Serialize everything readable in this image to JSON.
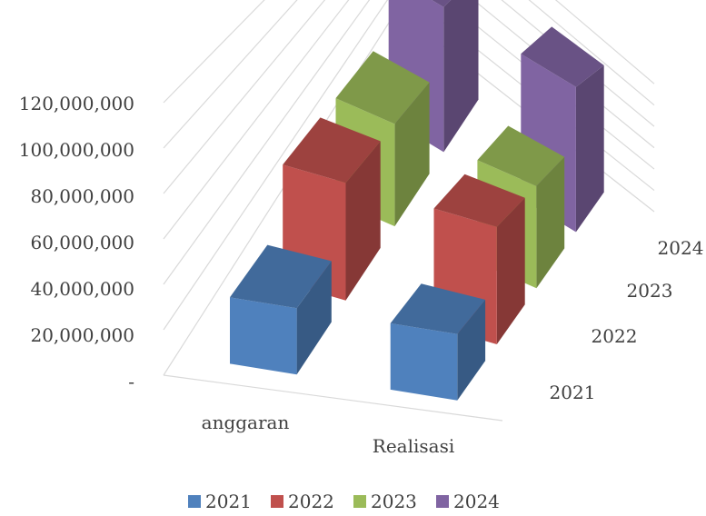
{
  "chart_data": {
    "type": "bar",
    "title": "",
    "xlabel": "",
    "ylabel": "",
    "categories": [
      "anggaran",
      "Realisasi"
    ],
    "y_ticks": [
      "-",
      "20,000,000",
      "40,000,000",
      "60,000,000",
      "80,000,000",
      "100,000,000",
      "120,000,000"
    ],
    "ylim": [
      0,
      120000000
    ],
    "legend_position": "bottom",
    "grid": true,
    "series": [
      {
        "name": "2021",
        "color": "#4f81bd",
        "values": [
          30000000,
          30000000
        ]
      },
      {
        "name": "2022",
        "color": "#c0504d",
        "values": [
          60000000,
          60000000
        ]
      },
      {
        "name": "2023",
        "color": "#9bbb59",
        "values": [
          60000000,
          60000000
        ]
      },
      {
        "name": "2024",
        "color": "#8064a2",
        "values": [
          100000000,
          100000000
        ]
      }
    ]
  }
}
